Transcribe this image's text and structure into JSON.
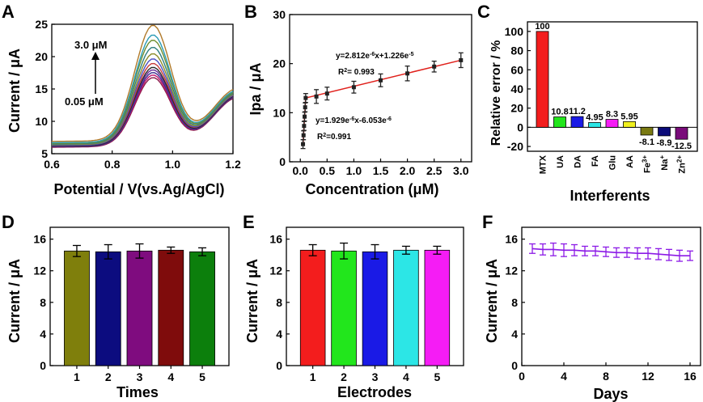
{
  "panels": {
    "A": {
      "letter": "A",
      "chart_data": {
        "type": "line",
        "xlabel": "Potential / V(vs.Ag/AgCl)",
        "ylabel": "Current / μA",
        "xlim": [
          0.6,
          1.2
        ],
        "ylim": [
          5,
          25
        ],
        "xticks": [
          0.6,
          0.8,
          1.0,
          1.2
        ],
        "yticks": [
          5,
          10,
          15,
          20,
          25
        ],
        "annotations": [
          "3.0 μM",
          "0.05 μM"
        ],
        "series": [
          {
            "color": "#8b1a4a",
            "base": 6.0,
            "peak": 16.6
          },
          {
            "color": "#c0146e",
            "base": 6.1,
            "peak": 17.0
          },
          {
            "color": "#3a2f8f",
            "base": 6.1,
            "peak": 17.4
          },
          {
            "color": "#6a2d9b",
            "base": 6.2,
            "peak": 17.8
          },
          {
            "color": "#2a2a2a",
            "base": 6.2,
            "peak": 18.2
          },
          {
            "color": "#c73a3a",
            "base": 6.3,
            "peak": 18.8
          },
          {
            "color": "#4b4fc4",
            "base": 6.3,
            "peak": 19.5
          },
          {
            "color": "#8c8c2a",
            "base": 6.4,
            "peak": 20.3
          },
          {
            "color": "#2f7f7f",
            "base": 6.5,
            "peak": 21.3
          },
          {
            "color": "#6f8e2f",
            "base": 6.6,
            "peak": 22.4
          },
          {
            "color": "#2a9bb5",
            "base": 6.7,
            "peak": 23.2
          },
          {
            "color": "#b07a2a",
            "base": 6.9,
            "peak": 24.7
          }
        ]
      }
    },
    "B": {
      "letter": "B",
      "chart_data": {
        "type": "scatter",
        "xlabel": "Concentration (μM)",
        "ylabel": "Ipa / μA",
        "xlim": [
          -0.2,
          3.2
        ],
        "ylim": [
          0,
          30
        ],
        "xticks": [
          0.0,
          0.5,
          1.0,
          1.5,
          2.0,
          2.5,
          3.0
        ],
        "yticks": [
          0,
          10,
          20,
          30
        ],
        "fit_color": "#e0201b",
        "x": [
          0.05,
          0.06,
          0.07,
          0.08,
          0.09,
          0.1,
          0.3,
          0.5,
          1.0,
          1.5,
          2.0,
          2.5,
          3.0
        ],
        "y": [
          3.6,
          5.4,
          7.3,
          9.2,
          11.1,
          13.0,
          13.3,
          13.9,
          15.2,
          16.6,
          18.0,
          19.4,
          20.7
        ],
        "err": [
          0.9,
          0.9,
          0.9,
          0.9,
          0.9,
          0.9,
          1.4,
          1.3,
          1.2,
          1.3,
          1.5,
          1.1,
          1.5
        ],
        "eq_upper_1": "y=2.812e",
        "eq_upper_2": "-6",
        "eq_upper_3": "x+1.226e",
        "eq_upper_4": "-5",
        "r2_upper_1": "R",
        "r2_upper_2": "2",
        "r2_upper_3": "= 0.993",
        "eq_lower_1": "y=1.929e",
        "eq_lower_2": "-6",
        "eq_lower_3": "x-6.053e",
        "eq_lower_4": "-6",
        "r2_lower_1": "R",
        "r2_lower_2": "2",
        "r2_lower_3": "=0.991"
      }
    },
    "C": {
      "letter": "C",
      "chart_data": {
        "type": "bar",
        "xlabel": "Interferents",
        "ylabel": "Relative error / %",
        "ylim": [
          -25,
          110
        ],
        "yticks": [
          -20,
          0,
          20,
          40,
          60,
          80,
          100
        ],
        "categories": [
          {
            "base": "MTX",
            "sup": ""
          },
          {
            "base": "UA",
            "sup": ""
          },
          {
            "base": "DA",
            "sup": ""
          },
          {
            "base": "FA",
            "sup": ""
          },
          {
            "base": "Glu",
            "sup": ""
          },
          {
            "base": "AA",
            "sup": ""
          },
          {
            "base": "Fe",
            "sup": "3+"
          },
          {
            "base": "Na",
            "sup": "+"
          },
          {
            "base": "Zn",
            "sup": "2+"
          }
        ],
        "values": [
          100,
          10.8,
          11.2,
          4.95,
          8.3,
          5.95,
          -8.1,
          -8.9,
          -12.5
        ],
        "labels": [
          "100",
          "10.8",
          "11.2",
          "4.95",
          "8.3",
          "5.95",
          "-8.1",
          "-8.9",
          "-12.5"
        ],
        "colors": [
          "#f31d1d",
          "#22e61c",
          "#1a1ae6",
          "#2ce6e6",
          "#f51cf5",
          "#f0f01e",
          "#7a7a12",
          "#0c0c7a",
          "#7a0c7a"
        ]
      }
    },
    "D": {
      "letter": "D",
      "chart_data": {
        "type": "bar",
        "xlabel": "Times",
        "ylabel": "Current / μA",
        "ylim": [
          0,
          17.5
        ],
        "yticks": [
          0,
          4,
          8,
          12,
          16
        ],
        "categories": [
          "1",
          "2",
          "3",
          "4",
          "5"
        ],
        "values": [
          14.5,
          14.4,
          14.5,
          14.6,
          14.4
        ],
        "err": [
          0.7,
          0.9,
          0.9,
          0.4,
          0.5
        ],
        "colors": [
          "#7f7f0c",
          "#0c0c7f",
          "#7f0c7f",
          "#7f0c0c",
          "#0c7f0c"
        ]
      }
    },
    "E": {
      "letter": "E",
      "chart_data": {
        "type": "bar",
        "xlabel": "Electrodes",
        "ylabel": "Current / μA",
        "ylim": [
          0,
          17.5
        ],
        "yticks": [
          0,
          4,
          8,
          12,
          16
        ],
        "categories": [
          "1",
          "2",
          "3",
          "4",
          "5"
        ],
        "values": [
          14.6,
          14.5,
          14.4,
          14.6,
          14.6
        ],
        "err": [
          0.7,
          1.0,
          0.9,
          0.5,
          0.5
        ],
        "colors": [
          "#f31d1d",
          "#22e61c",
          "#1a1ae6",
          "#2ce6e6",
          "#f51cf5"
        ]
      }
    },
    "F": {
      "letter": "F",
      "chart_data": {
        "type": "line",
        "xlabel": "Days",
        "ylabel": "Current / μA",
        "xlim": [
          0,
          17
        ],
        "ylim": [
          0,
          17.5
        ],
        "xticks": [
          0,
          4,
          8,
          12,
          16
        ],
        "yticks": [
          0,
          4,
          8,
          12,
          16
        ],
        "color": "#8c1ae6",
        "x": [
          1,
          2,
          3,
          4,
          5,
          6,
          7,
          8,
          9,
          10,
          11,
          12,
          13,
          14,
          15,
          16
        ],
        "y": [
          14.8,
          14.7,
          14.7,
          14.6,
          14.6,
          14.5,
          14.5,
          14.4,
          14.3,
          14.3,
          14.2,
          14.2,
          14.1,
          14.0,
          13.9,
          13.9
        ],
        "err": [
          0.6,
          0.7,
          0.8,
          0.8,
          0.7,
          0.6,
          0.6,
          0.6,
          0.6,
          0.6,
          0.7,
          0.7,
          0.7,
          0.7,
          0.7,
          0.6
        ]
      }
    }
  }
}
